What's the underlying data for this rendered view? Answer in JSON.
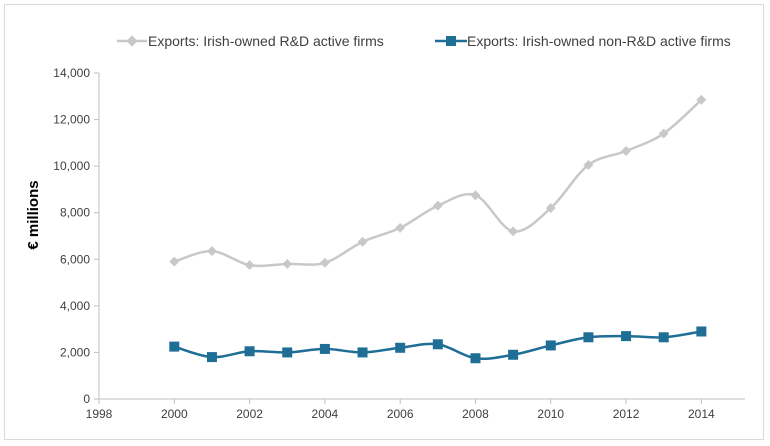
{
  "chart_data": {
    "type": "line",
    "title": "",
    "xlabel": "",
    "ylabel": "€ millions",
    "xlim": [
      1998,
      2015
    ],
    "ylim": [
      0,
      14000
    ],
    "x_ticks": [
      1998,
      2000,
      2002,
      2004,
      2006,
      2008,
      2010,
      2012,
      2014
    ],
    "x_tick_labels": [
      "1998",
      "2000",
      "2002",
      "2004",
      "2006",
      "2008",
      "2010",
      "2012",
      "2014"
    ],
    "y_ticks": [
      0,
      2000,
      4000,
      6000,
      8000,
      10000,
      12000,
      14000
    ],
    "y_tick_labels": [
      "0",
      "2,000",
      "4,000",
      "6,000",
      "8,000",
      "10,000",
      "12,000",
      "14,000"
    ],
    "grid": false,
    "legend_position": "top",
    "x": [
      2000,
      2001,
      2002,
      2003,
      2004,
      2005,
      2006,
      2007,
      2008,
      2009,
      2010,
      2011,
      2012,
      2013,
      2014
    ],
    "series": [
      {
        "name": "Exports: Irish-owned R&D active firms",
        "color": "#c8c8c8",
        "marker": "diamond",
        "values": [
          5900,
          6350,
          5750,
          5800,
          5850,
          6750,
          7350,
          8300,
          8750,
          7200,
          8200,
          10050,
          10650,
          11400,
          12850
        ]
      },
      {
        "name": "Exports: Irish-owned non-R&D active firms",
        "color": "#1f6e96",
        "marker": "square",
        "values": [
          2250,
          1800,
          2050,
          2000,
          2150,
          2000,
          2200,
          2350,
          1750,
          1900,
          2300,
          2650,
          2700,
          2650,
          2900
        ]
      }
    ]
  }
}
